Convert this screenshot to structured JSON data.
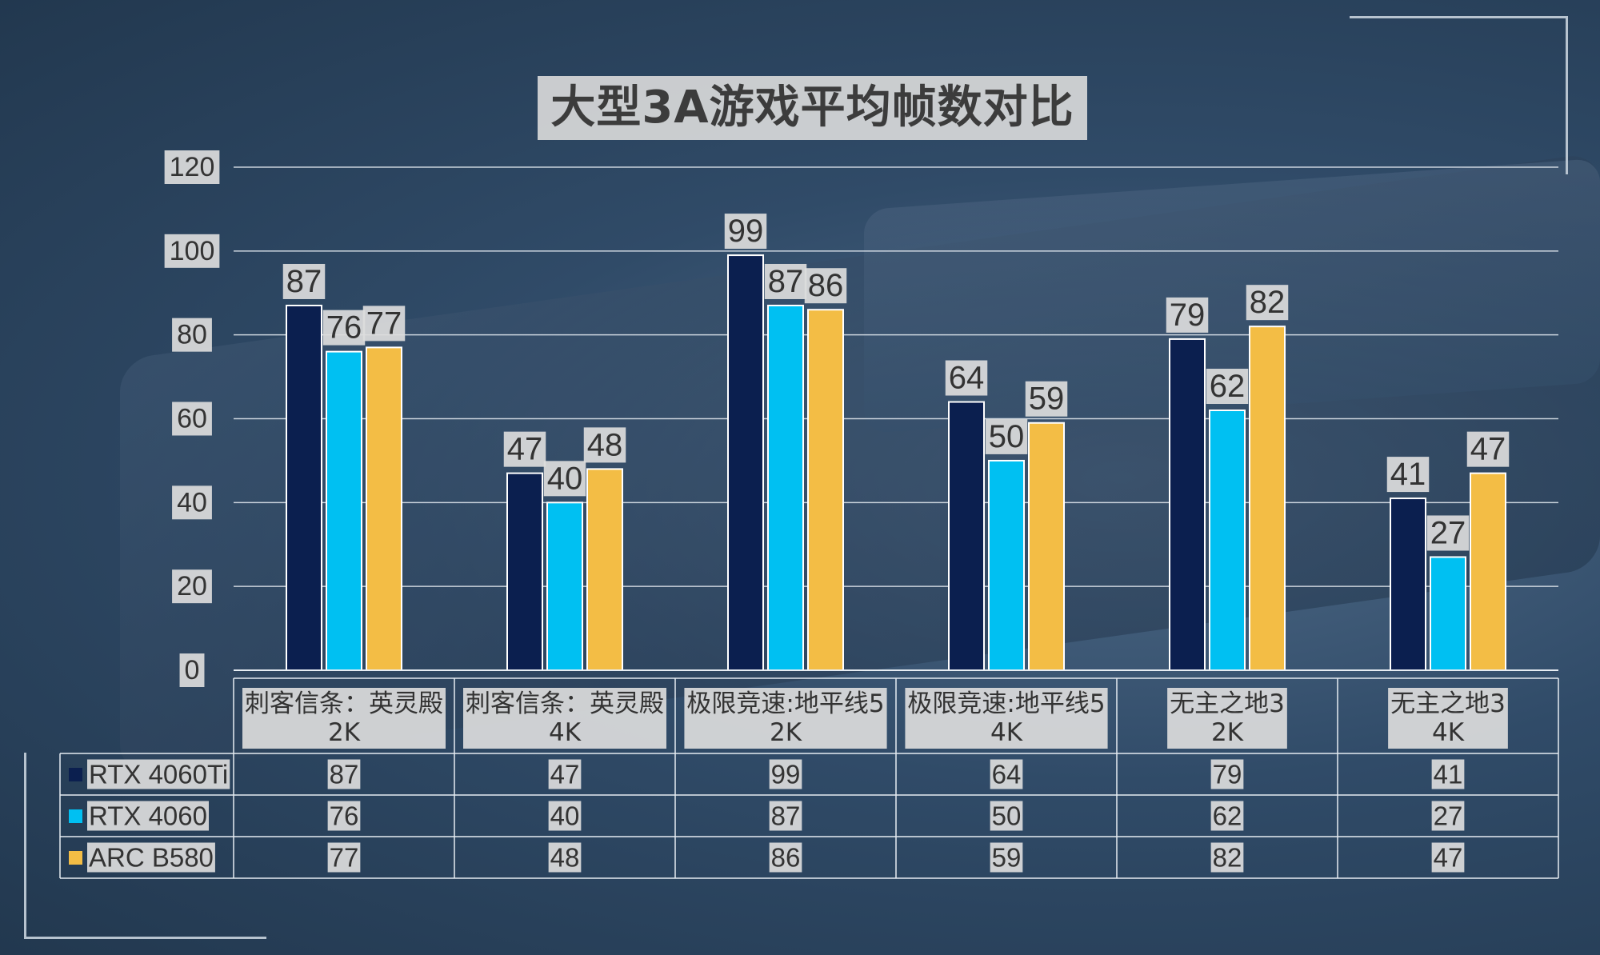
{
  "title": "大型3A游戏平均帧数对比",
  "colors": {
    "RTX 4060Ti": "#0b1f4f",
    "RTX 4060": "#00c0f2",
    "ARC B580": "#f3bd45",
    "label_bg": "#dcdcdc",
    "gridline": "#e6ecf2"
  },
  "chart_data": {
    "type": "bar",
    "title": "大型3A游戏平均帧数对比",
    "categories": [
      [
        "刺客信条：英灵殿",
        "2K"
      ],
      [
        "刺客信条：英灵殿",
        "4K"
      ],
      [
        "极限竞速:地平线5",
        "2K"
      ],
      [
        "极限竞速:地平线5",
        "4K"
      ],
      [
        "无主之地3",
        "2K"
      ],
      [
        "无主之地3",
        "4K"
      ]
    ],
    "series": [
      {
        "name": "RTX 4060Ti",
        "values": [
          87,
          47,
          99,
          64,
          79,
          41
        ]
      },
      {
        "name": "RTX 4060",
        "values": [
          76,
          40,
          87,
          50,
          62,
          27
        ]
      },
      {
        "name": "ARC B580",
        "values": [
          77,
          48,
          86,
          59,
          82,
          47
        ]
      }
    ],
    "yticks": [
      "0",
      "20",
      "40",
      "60",
      "80",
      "100",
      "120"
    ],
    "ylim": [
      0,
      120
    ],
    "grid": true,
    "legend": "data table",
    "xlabel": "",
    "ylabel": ""
  }
}
